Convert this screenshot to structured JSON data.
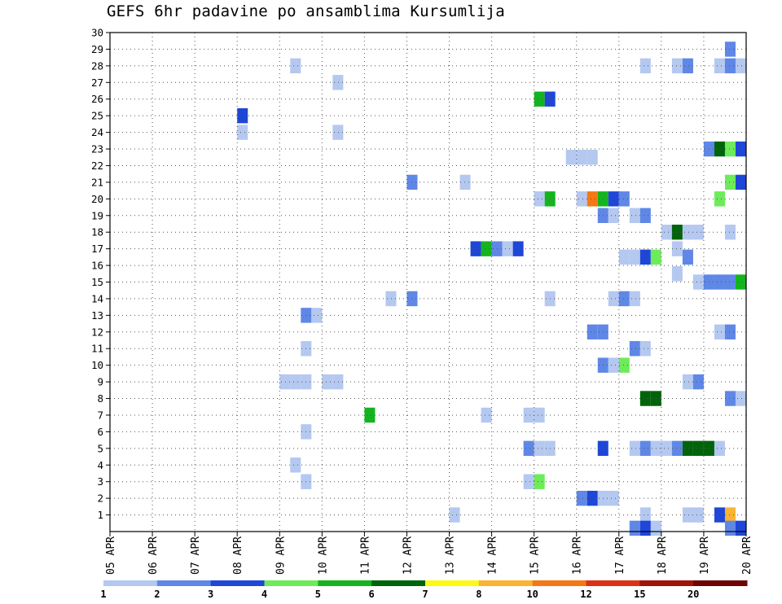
{
  "title": "GEFS 6hr padavine po ansamblima Kursumlija",
  "colors": {
    "c1": "#b4c8f0",
    "c2": "#5f87e6",
    "c3": "#1e46d7",
    "c4": "#6eeb5a",
    "c5": "#14b41e",
    "c6": "#00640a",
    "c7": "#fafa14",
    "c8": "#fab432",
    "c10": "#f57814",
    "c12": "#dc3214",
    "c15": "#a0140a",
    "c20": "#6e0505"
  },
  "chart_data": {
    "type": "heatmap",
    "title": "GEFS 6hr padavine po ansamblima Kursumlija",
    "xlabel": "",
    "ylabel": "",
    "x_ticks": [
      "05 APR",
      "06 APR",
      "07 APR",
      "08 APR",
      "09 APR",
      "10 APR",
      "11 APR",
      "12 APR",
      "13 APR",
      "14 APR",
      "15 APR",
      "16 APR",
      "17 APR",
      "18 APR",
      "19 APR",
      "20 APR"
    ],
    "y_ticks": [
      "1",
      "2",
      "3",
      "4",
      "5",
      "6",
      "7",
      "8",
      "9",
      "10",
      "11",
      "12",
      "13",
      "14",
      "15",
      "16",
      "17",
      "18",
      "19",
      "20",
      "21",
      "22",
      "23",
      "24",
      "25",
      "26",
      "27",
      "28",
      "29",
      "30"
    ],
    "xlim_days": [
      0,
      15
    ],
    "ylim": [
      0,
      30
    ],
    "legend_levels": [
      "1",
      "2",
      "3",
      "4",
      "5",
      "6",
      "7",
      "8",
      "10",
      "12",
      "15",
      "20"
    ],
    "legend_colors": [
      "c1",
      "c2",
      "c3",
      "c4",
      "c5",
      "c6",
      "c7",
      "c8",
      "c10",
      "c12",
      "c15",
      "c20"
    ],
    "cells": [
      {
        "m": 28,
        "d": 4.25,
        "c": "c1"
      },
      {
        "m": 27,
        "d": 5.25,
        "c": "c1"
      },
      {
        "m": 26,
        "d": 10.0,
        "c": "c5"
      },
      {
        "m": 26,
        "d": 10.25,
        "c": "c3"
      },
      {
        "m": 25,
        "d": 3.0,
        "c": "c3"
      },
      {
        "m": 24,
        "d": 3.0,
        "c": "c1"
      },
      {
        "m": 24,
        "d": 5.25,
        "c": "c1"
      },
      {
        "m": 22.5,
        "d": 10.75,
        "c": "c1"
      },
      {
        "m": 22.5,
        "d": 11.0,
        "c": "c1"
      },
      {
        "m": 22.5,
        "d": 11.25,
        "c": "c1"
      },
      {
        "m": 23,
        "d": 14.0,
        "c": "c2"
      },
      {
        "m": 23,
        "d": 14.25,
        "c": "c6"
      },
      {
        "m": 23,
        "d": 14.5,
        "c": "c4"
      },
      {
        "m": 23,
        "d": 14.75,
        "c": "c3"
      },
      {
        "m": 21,
        "d": 7.0,
        "c": "c2"
      },
      {
        "m": 21,
        "d": 8.25,
        "c": "c1"
      },
      {
        "m": 21,
        "d": 14.5,
        "c": "c4"
      },
      {
        "m": 21,
        "d": 14.75,
        "c": "c3"
      },
      {
        "m": 20,
        "d": 10.0,
        "c": "c1"
      },
      {
        "m": 20,
        "d": 10.25,
        "c": "c5"
      },
      {
        "m": 20,
        "d": 11.0,
        "c": "c1"
      },
      {
        "m": 20,
        "d": 11.25,
        "c": "c10"
      },
      {
        "m": 20,
        "d": 11.5,
        "c": "c5"
      },
      {
        "m": 20,
        "d": 11.75,
        "c": "c3"
      },
      {
        "m": 20,
        "d": 12.0,
        "c": "c2"
      },
      {
        "m": 20,
        "d": 14.25,
        "c": "c4"
      },
      {
        "m": 19,
        "d": 11.5,
        "c": "c2"
      },
      {
        "m": 19,
        "d": 11.75,
        "c": "c1"
      },
      {
        "m": 19,
        "d": 12.25,
        "c": "c1"
      },
      {
        "m": 19,
        "d": 12.5,
        "c": "c2"
      },
      {
        "m": 18,
        "d": 13.0,
        "c": "c1"
      },
      {
        "m": 18,
        "d": 13.25,
        "c": "c6"
      },
      {
        "m": 18,
        "d": 13.5,
        "c": "c1"
      },
      {
        "m": 18,
        "d": 13.75,
        "c": "c1"
      },
      {
        "m": 18,
        "d": 14.5,
        "c": "c1"
      },
      {
        "m": 17,
        "d": 8.5,
        "c": "c3"
      },
      {
        "m": 17,
        "d": 8.75,
        "c": "c5"
      },
      {
        "m": 17,
        "d": 9.0,
        "c": "c2"
      },
      {
        "m": 17,
        "d": 9.25,
        "c": "c1"
      },
      {
        "m": 17,
        "d": 9.5,
        "c": "c3"
      },
      {
        "m": 16.5,
        "d": 12.0,
        "c": "c1"
      },
      {
        "m": 16.5,
        "d": 12.25,
        "c": "c1"
      },
      {
        "m": 16.5,
        "d": 12.5,
        "c": "c3"
      },
      {
        "m": 16.5,
        "d": 12.75,
        "c": "c4"
      },
      {
        "m": 17,
        "d": 13.25,
        "c": "c1"
      },
      {
        "m": 16.5,
        "d": 13.5,
        "c": "c2"
      },
      {
        "m": 15.5,
        "d": 13.25,
        "c": "c1"
      },
      {
        "m": 15,
        "d": 13.75,
        "c": "c1"
      },
      {
        "m": 15,
        "d": 14.0,
        "c": "c2"
      },
      {
        "m": 15,
        "d": 14.25,
        "c": "c2"
      },
      {
        "m": 15,
        "d": 14.5,
        "c": "c2"
      },
      {
        "m": 15,
        "d": 14.75,
        "c": "c5"
      },
      {
        "m": 14,
        "d": 6.5,
        "c": "c1"
      },
      {
        "m": 14,
        "d": 7.0,
        "c": "c2"
      },
      {
        "m": 14,
        "d": 10.25,
        "c": "c1"
      },
      {
        "m": 14,
        "d": 11.75,
        "c": "c1"
      },
      {
        "m": 14,
        "d": 12.0,
        "c": "c2"
      },
      {
        "m": 14,
        "d": 12.25,
        "c": "c1"
      },
      {
        "m": 13,
        "d": 4.5,
        "c": "c2"
      },
      {
        "m": 13,
        "d": 4.75,
        "c": "c1"
      },
      {
        "m": 12,
        "d": 11.25,
        "c": "c2"
      },
      {
        "m": 12,
        "d": 11.5,
        "c": "c2"
      },
      {
        "m": 12,
        "d": 14.25,
        "c": "c1"
      },
      {
        "m": 12,
        "d": 14.5,
        "c": "c2"
      },
      {
        "m": 11,
        "d": 4.5,
        "c": "c1"
      },
      {
        "m": 11,
        "d": 12.25,
        "c": "c2"
      },
      {
        "m": 11,
        "d": 12.5,
        "c": "c1"
      },
      {
        "m": 10,
        "d": 11.5,
        "c": "c2"
      },
      {
        "m": 10,
        "d": 11.75,
        "c": "c1"
      },
      {
        "m": 10,
        "d": 12.0,
        "c": "c4"
      },
      {
        "m": 9,
        "d": 4.0,
        "c": "c1"
      },
      {
        "m": 9,
        "d": 4.25,
        "c": "c1"
      },
      {
        "m": 9,
        "d": 4.5,
        "c": "c1"
      },
      {
        "m": 9,
        "d": 5.0,
        "c": "c1"
      },
      {
        "m": 9,
        "d": 5.25,
        "c": "c1"
      },
      {
        "m": 9,
        "d": 13.5,
        "c": "c1"
      },
      {
        "m": 9,
        "d": 13.75,
        "c": "c2"
      },
      {
        "m": 8,
        "d": 12.5,
        "c": "c6"
      },
      {
        "m": 8,
        "d": 12.75,
        "c": "c6"
      },
      {
        "m": 8,
        "d": 14.5,
        "c": "c2"
      },
      {
        "m": 8,
        "d": 14.75,
        "c": "c1"
      },
      {
        "m": 7,
        "d": 6.0,
        "c": "c5"
      },
      {
        "m": 7,
        "d": 8.75,
        "c": "c1"
      },
      {
        "m": 7,
        "d": 9.75,
        "c": "c1"
      },
      {
        "m": 7,
        "d": 10.0,
        "c": "c1"
      },
      {
        "m": 6,
        "d": 4.5,
        "c": "c1"
      },
      {
        "m": 5,
        "d": 9.75,
        "c": "c2"
      },
      {
        "m": 5,
        "d": 10.0,
        "c": "c1"
      },
      {
        "m": 5,
        "d": 10.25,
        "c": "c1"
      },
      {
        "m": 5,
        "d": 11.5,
        "c": "c3"
      },
      {
        "m": 5,
        "d": 12.25,
        "c": "c1"
      },
      {
        "m": 5,
        "d": 12.5,
        "c": "c2"
      },
      {
        "m": 5,
        "d": 12.75,
        "c": "c1"
      },
      {
        "m": 5,
        "d": 13.0,
        "c": "c1"
      },
      {
        "m": 5,
        "d": 13.25,
        "c": "c2"
      },
      {
        "m": 5,
        "d": 13.5,
        "c": "c6"
      },
      {
        "m": 5,
        "d": 13.75,
        "c": "c6"
      },
      {
        "m": 5,
        "d": 14.0,
        "c": "c6"
      },
      {
        "m": 5,
        "d": 14.25,
        "c": "c1"
      },
      {
        "m": 4,
        "d": 4.25,
        "c": "c1"
      },
      {
        "m": 3,
        "d": 4.5,
        "c": "c1"
      },
      {
        "m": 3,
        "d": 9.75,
        "c": "c1"
      },
      {
        "m": 3,
        "d": 10.0,
        "c": "c4"
      },
      {
        "m": 2,
        "d": 11.0,
        "c": "c2"
      },
      {
        "m": 2,
        "d": 11.25,
        "c": "c3"
      },
      {
        "m": 2,
        "d": 11.5,
        "c": "c1"
      },
      {
        "m": 2,
        "d": 11.75,
        "c": "c1"
      },
      {
        "m": 1,
        "d": 8.0,
        "c": "c1"
      },
      {
        "m": 1,
        "d": 12.5,
        "c": "c1"
      },
      {
        "m": 1,
        "d": 13.5,
        "c": "c1"
      },
      {
        "m": 1,
        "d": 13.75,
        "c": "c1"
      },
      {
        "m": 1,
        "d": 14.25,
        "c": "c3"
      },
      {
        "m": 1,
        "d": 14.5,
        "c": "c8"
      },
      {
        "m": 0.2,
        "d": 12.25,
        "c": "c2"
      },
      {
        "m": 0.2,
        "d": 12.5,
        "c": "c3"
      },
      {
        "m": 0.2,
        "d": 12.75,
        "c": "c1"
      },
      {
        "m": 0.2,
        "d": 14.5,
        "c": "c2"
      },
      {
        "m": 0.2,
        "d": 14.75,
        "c": "c3"
      },
      {
        "m": 28,
        "d": 12.5,
        "c": "c1"
      },
      {
        "m": 28,
        "d": 13.25,
        "c": "c1"
      },
      {
        "m": 28,
        "d": 13.5,
        "c": "c2"
      },
      {
        "m": 28,
        "d": 14.25,
        "c": "c1"
      },
      {
        "m": 28,
        "d": 14.5,
        "c": "c2"
      },
      {
        "m": 28,
        "d": 14.75,
        "c": "c1"
      },
      {
        "m": 29,
        "d": 14.5,
        "c": "c2"
      }
    ]
  }
}
